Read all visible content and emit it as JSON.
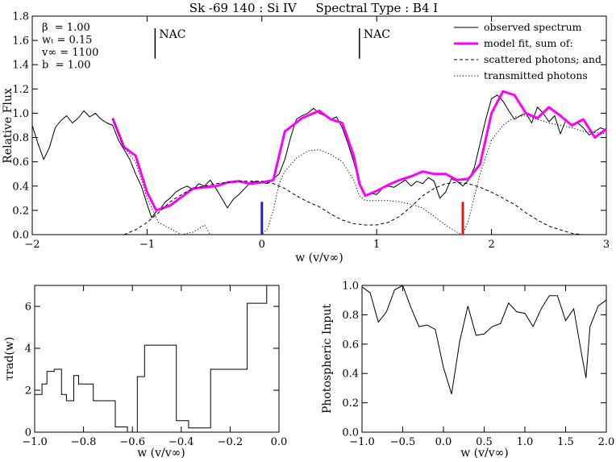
{
  "page_title": "Sk -69 140 : Si IV     Spectral Type : B4 I",
  "chart_data": [
    {
      "id": "main",
      "type": "line",
      "xlabel": "w (v/v∞)",
      "ylabel": "Relative Flux",
      "xlim": [
        -2,
        3
      ],
      "ylim": [
        0,
        1.8
      ],
      "xticks": [
        -2,
        -1,
        0,
        1,
        2,
        3
      ],
      "xtick_labels": [
        "−2",
        "−1",
        "0",
        "1",
        "2",
        "3"
      ],
      "yticks": [
        0.0,
        0.2,
        0.4,
        0.6,
        0.8,
        1.0,
        1.2,
        1.4,
        1.6,
        1.8
      ],
      "ytick_labels": [
        "0.0",
        "0.2",
        "0.4",
        "0.6",
        "0.8",
        "1.0",
        "1.2",
        "1.4",
        "1.6",
        "1.8"
      ],
      "params": [
        {
          "label": "β  = 1.00"
        },
        {
          "label": "wₜ = 0.15"
        },
        {
          "label": "v∞ = 1100"
        },
        {
          "label": "b  = 1.00"
        }
      ],
      "nac_markers": [
        {
          "label": "NAC",
          "x": -0.93,
          "y_from": 1.45,
          "y_to": 1.7
        },
        {
          "label": "NAC",
          "x": 0.85,
          "y_from": 1.45,
          "y_to": 1.7
        }
      ],
      "vertical_markers": [
        {
          "x": 0.0,
          "y_top": 0.27,
          "color": "#1f1fd6"
        },
        {
          "x": 1.75,
          "y_top": 0.27,
          "color": "#e01818"
        }
      ],
      "legend": {
        "placement": "top-right",
        "entries": [
          {
            "label": "observed spectrum",
            "style": "solid",
            "color": "#000000"
          },
          {
            "label": "model fit, sum of:",
            "style": "solid",
            "color": "#ff00ff"
          },
          {
            "label": "scattered photons; and",
            "style": "dashed",
            "color": "#000000"
          },
          {
            "label": "transmitted photons",
            "style": "dotted",
            "color": "#000000"
          }
        ]
      },
      "series": [
        {
          "name": "observed spectrum",
          "style": "solid",
          "color": "#000000",
          "x": [
            -2.0,
            -1.95,
            -1.9,
            -1.85,
            -1.8,
            -1.75,
            -1.7,
            -1.65,
            -1.6,
            -1.55,
            -1.5,
            -1.45,
            -1.4,
            -1.35,
            -1.3,
            -1.25,
            -1.2,
            -1.15,
            -1.1,
            -1.05,
            -1.0,
            -0.96,
            -0.92,
            -0.88,
            -0.84,
            -0.8,
            -0.75,
            -0.7,
            -0.65,
            -0.6,
            -0.55,
            -0.5,
            -0.45,
            -0.4,
            -0.35,
            -0.3,
            -0.25,
            -0.2,
            -0.15,
            -0.1,
            -0.05,
            0.0,
            0.05,
            0.1,
            0.15,
            0.2,
            0.25,
            0.3,
            0.35,
            0.4,
            0.45,
            0.5,
            0.55,
            0.6,
            0.65,
            0.7,
            0.75,
            0.8,
            0.85,
            0.9,
            0.95,
            1.0,
            1.05,
            1.1,
            1.15,
            1.2,
            1.25,
            1.3,
            1.35,
            1.4,
            1.45,
            1.5,
            1.55,
            1.6,
            1.65,
            1.7,
            1.75,
            1.8,
            1.85,
            1.9,
            1.95,
            2.0,
            2.05,
            2.1,
            2.15,
            2.2,
            2.25,
            2.3,
            2.35,
            2.4,
            2.45,
            2.5,
            2.55,
            2.6,
            2.65,
            2.7,
            2.75,
            2.8,
            2.85,
            2.9,
            2.95,
            3.0
          ],
          "y": [
            0.9,
            0.75,
            0.62,
            0.72,
            0.88,
            0.94,
            0.98,
            0.92,
            0.96,
            1.02,
            0.97,
            1.0,
            0.95,
            0.92,
            0.9,
            0.78,
            0.7,
            0.62,
            0.5,
            0.4,
            0.25,
            0.14,
            0.19,
            0.22,
            0.27,
            0.3,
            0.35,
            0.38,
            0.4,
            0.37,
            0.42,
            0.4,
            0.45,
            0.38,
            0.3,
            0.22,
            0.29,
            0.33,
            0.38,
            0.43,
            0.44,
            0.43,
            0.42,
            0.46,
            0.5,
            0.62,
            0.8,
            0.95,
            0.98,
            1.0,
            1.04,
            1.0,
            0.98,
            0.95,
            0.97,
            0.88,
            0.75,
            0.6,
            0.42,
            0.32,
            0.34,
            0.33,
            0.38,
            0.4,
            0.39,
            0.42,
            0.45,
            0.4,
            0.44,
            0.42,
            0.47,
            0.44,
            0.3,
            0.35,
            0.46,
            0.44,
            0.4,
            0.45,
            0.55,
            0.75,
            0.95,
            1.12,
            1.15,
            1.1,
            1.02,
            0.95,
            0.98,
            1.0,
            0.92,
            1.05,
            1.0,
            0.93,
            0.98,
            0.83,
            0.95,
            0.9,
            0.92,
            0.88,
            0.82,
            0.85,
            0.88,
            0.86
          ]
        },
        {
          "name": "model fit, sum of:",
          "style": "solid",
          "color": "#ff00ff",
          "x": [
            -1.3,
            -1.2,
            -1.1,
            -1.0,
            -0.92,
            -0.8,
            -0.6,
            -0.4,
            -0.3,
            -0.2,
            -0.1,
            0.0,
            0.1,
            0.2,
            0.35,
            0.5,
            0.6,
            0.7,
            0.8,
            0.85,
            0.9,
            1.0,
            1.1,
            1.2,
            1.3,
            1.4,
            1.5,
            1.6,
            1.7,
            1.8,
            1.9,
            2.0,
            2.1,
            2.2,
            2.3,
            2.4,
            2.5,
            2.6,
            2.7,
            2.8,
            2.9,
            3.0
          ],
          "y": [
            0.96,
            0.72,
            0.65,
            0.35,
            0.2,
            0.24,
            0.38,
            0.4,
            0.43,
            0.44,
            0.42,
            0.43,
            0.45,
            0.85,
            0.96,
            1.02,
            0.95,
            0.92,
            0.65,
            0.42,
            0.32,
            0.36,
            0.41,
            0.45,
            0.48,
            0.52,
            0.5,
            0.5,
            0.45,
            0.46,
            0.58,
            1.0,
            1.18,
            1.15,
            1.0,
            0.96,
            1.05,
            0.98,
            0.9,
            0.95,
            0.8,
            0.87
          ]
        },
        {
          "name": "scattered photons; and",
          "style": "dashed",
          "color": "#000000",
          "x": [
            -1.2,
            -1.1,
            -1.0,
            -0.9,
            -0.8,
            -0.7,
            -0.6,
            -0.5,
            -0.4,
            -0.3,
            -0.2,
            -0.1,
            0.0,
            0.1,
            0.2,
            0.3,
            0.4,
            0.5,
            0.6,
            0.7,
            0.8,
            0.9,
            1.0,
            1.1,
            1.2,
            1.3,
            1.4,
            1.5,
            1.6,
            1.7,
            1.8,
            1.9,
            2.0,
            2.1,
            2.2,
            2.3,
            2.4,
            2.5,
            2.6,
            2.7,
            2.8
          ],
          "y": [
            0.0,
            0.04,
            0.1,
            0.18,
            0.27,
            0.33,
            0.38,
            0.4,
            0.42,
            0.43,
            0.44,
            0.44,
            0.44,
            0.42,
            0.38,
            0.32,
            0.27,
            0.23,
            0.17,
            0.12,
            0.09,
            0.08,
            0.08,
            0.1,
            0.15,
            0.23,
            0.32,
            0.38,
            0.42,
            0.43,
            0.42,
            0.39,
            0.35,
            0.3,
            0.25,
            0.18,
            0.12,
            0.07,
            0.04,
            0.01,
            0.0
          ]
        },
        {
          "name": "transmitted photons",
          "style": "dotted",
          "color": "#000000",
          "x": [
            -1.3,
            -1.2,
            -1.1,
            -1.0,
            -0.9,
            -0.8,
            -0.7,
            -0.6,
            -0.5,
            -0.45,
            -0.35,
            -0.25,
            -0.15,
            -0.05,
            0.0,
            0.05,
            0.1,
            0.15,
            0.2,
            0.3,
            0.4,
            0.5,
            0.6,
            0.7,
            0.8,
            0.85,
            0.9,
            1.0,
            1.1,
            1.2,
            1.3,
            1.4,
            1.5,
            1.6,
            1.7,
            1.75,
            1.8,
            1.9,
            2.0,
            2.1,
            2.2,
            2.3,
            2.4,
            2.5,
            2.6,
            2.7,
            2.8,
            2.9,
            3.0
          ],
          "y": [
            0.95,
            0.72,
            0.6,
            0.3,
            0.1,
            0.05,
            0.0,
            0.02,
            0.08,
            0.0,
            0.0,
            0.0,
            0.0,
            0.0,
            0.0,
            0.05,
            0.2,
            0.42,
            0.52,
            0.63,
            0.69,
            0.7,
            0.66,
            0.6,
            0.45,
            0.32,
            0.28,
            0.28,
            0.28,
            0.27,
            0.25,
            0.22,
            0.15,
            0.08,
            0.02,
            0.0,
            0.12,
            0.5,
            0.78,
            0.9,
            0.97,
            0.98,
            0.95,
            0.92,
            0.9,
            0.88,
            0.85,
            0.84,
            0.83
          ]
        }
      ]
    },
    {
      "id": "tau",
      "type": "line",
      "xlabel": "w (v/v∞)",
      "ylabel": "τrad(w)",
      "xlim": [
        -1.0,
        0.0
      ],
      "ylim": [
        0,
        7
      ],
      "xticks": [
        -1.0,
        -0.8,
        -0.6,
        -0.4,
        -0.2,
        0.0
      ],
      "xtick_labels": [
        "−1.0",
        "−0.8",
        "−0.6",
        "−0.4",
        "−0.2",
        "0.0"
      ],
      "yticks": [
        0,
        2,
        4,
        6
      ],
      "ytick_labels": [
        "0",
        "2",
        "4",
        "6"
      ],
      "series": [
        {
          "name": "tau_rad",
          "style": "step",
          "color": "#000000",
          "edges": [
            -1.0,
            -0.97,
            -0.95,
            -0.92,
            -0.89,
            -0.87,
            -0.84,
            -0.82,
            -0.8,
            -0.76,
            -0.67,
            -0.62,
            -0.58,
            -0.55,
            -0.51,
            -0.42,
            -0.37,
            -0.28,
            -0.2,
            -0.13,
            -0.05
          ],
          "values": [
            1.8,
            2.3,
            2.9,
            3.0,
            1.8,
            1.5,
            2.7,
            2.3,
            2.3,
            1.5,
            0.25,
            0.0,
            2.65,
            4.15,
            4.15,
            0.55,
            0.2,
            3.0,
            3.0,
            6.15,
            7.0
          ]
        }
      ]
    },
    {
      "id": "photospheric",
      "type": "line",
      "xlabel": "w (v/v∞)",
      "ylabel": "Photospheric Input",
      "xlim": [
        -1.0,
        2.0
      ],
      "ylim": [
        0,
        1.0
      ],
      "xticks": [
        -1.0,
        -0.5,
        0.0,
        0.5,
        1.0,
        1.5,
        2.0
      ],
      "xtick_labels": [
        "−1.0",
        "−0.5",
        "0.0",
        "0.5",
        "1.0",
        "1.5",
        "2.0"
      ],
      "yticks": [
        0.0,
        0.2,
        0.4,
        0.6,
        0.8,
        1.0
      ],
      "ytick_labels": [
        "0.0",
        "0.2",
        "0.4",
        "0.6",
        "0.8",
        "1.0"
      ],
      "series": [
        {
          "name": "photospheric input",
          "style": "solid",
          "color": "#000000",
          "x": [
            -1.0,
            -0.9,
            -0.8,
            -0.7,
            -0.6,
            -0.5,
            -0.4,
            -0.3,
            -0.2,
            -0.1,
            0.0,
            0.1,
            0.2,
            0.3,
            0.4,
            0.5,
            0.6,
            0.7,
            0.8,
            0.9,
            1.0,
            1.1,
            1.2,
            1.3,
            1.4,
            1.5,
            1.6,
            1.7,
            1.75,
            1.8,
            1.9,
            2.0
          ],
          "y": [
            0.99,
            0.95,
            0.75,
            0.82,
            0.97,
            1.0,
            0.85,
            0.72,
            0.73,
            0.7,
            0.44,
            0.26,
            0.62,
            0.86,
            0.66,
            0.67,
            0.72,
            0.74,
            0.88,
            0.82,
            0.81,
            0.72,
            0.84,
            0.93,
            0.93,
            0.76,
            0.84,
            0.52,
            0.37,
            0.72,
            0.86,
            0.9
          ]
        }
      ]
    }
  ]
}
